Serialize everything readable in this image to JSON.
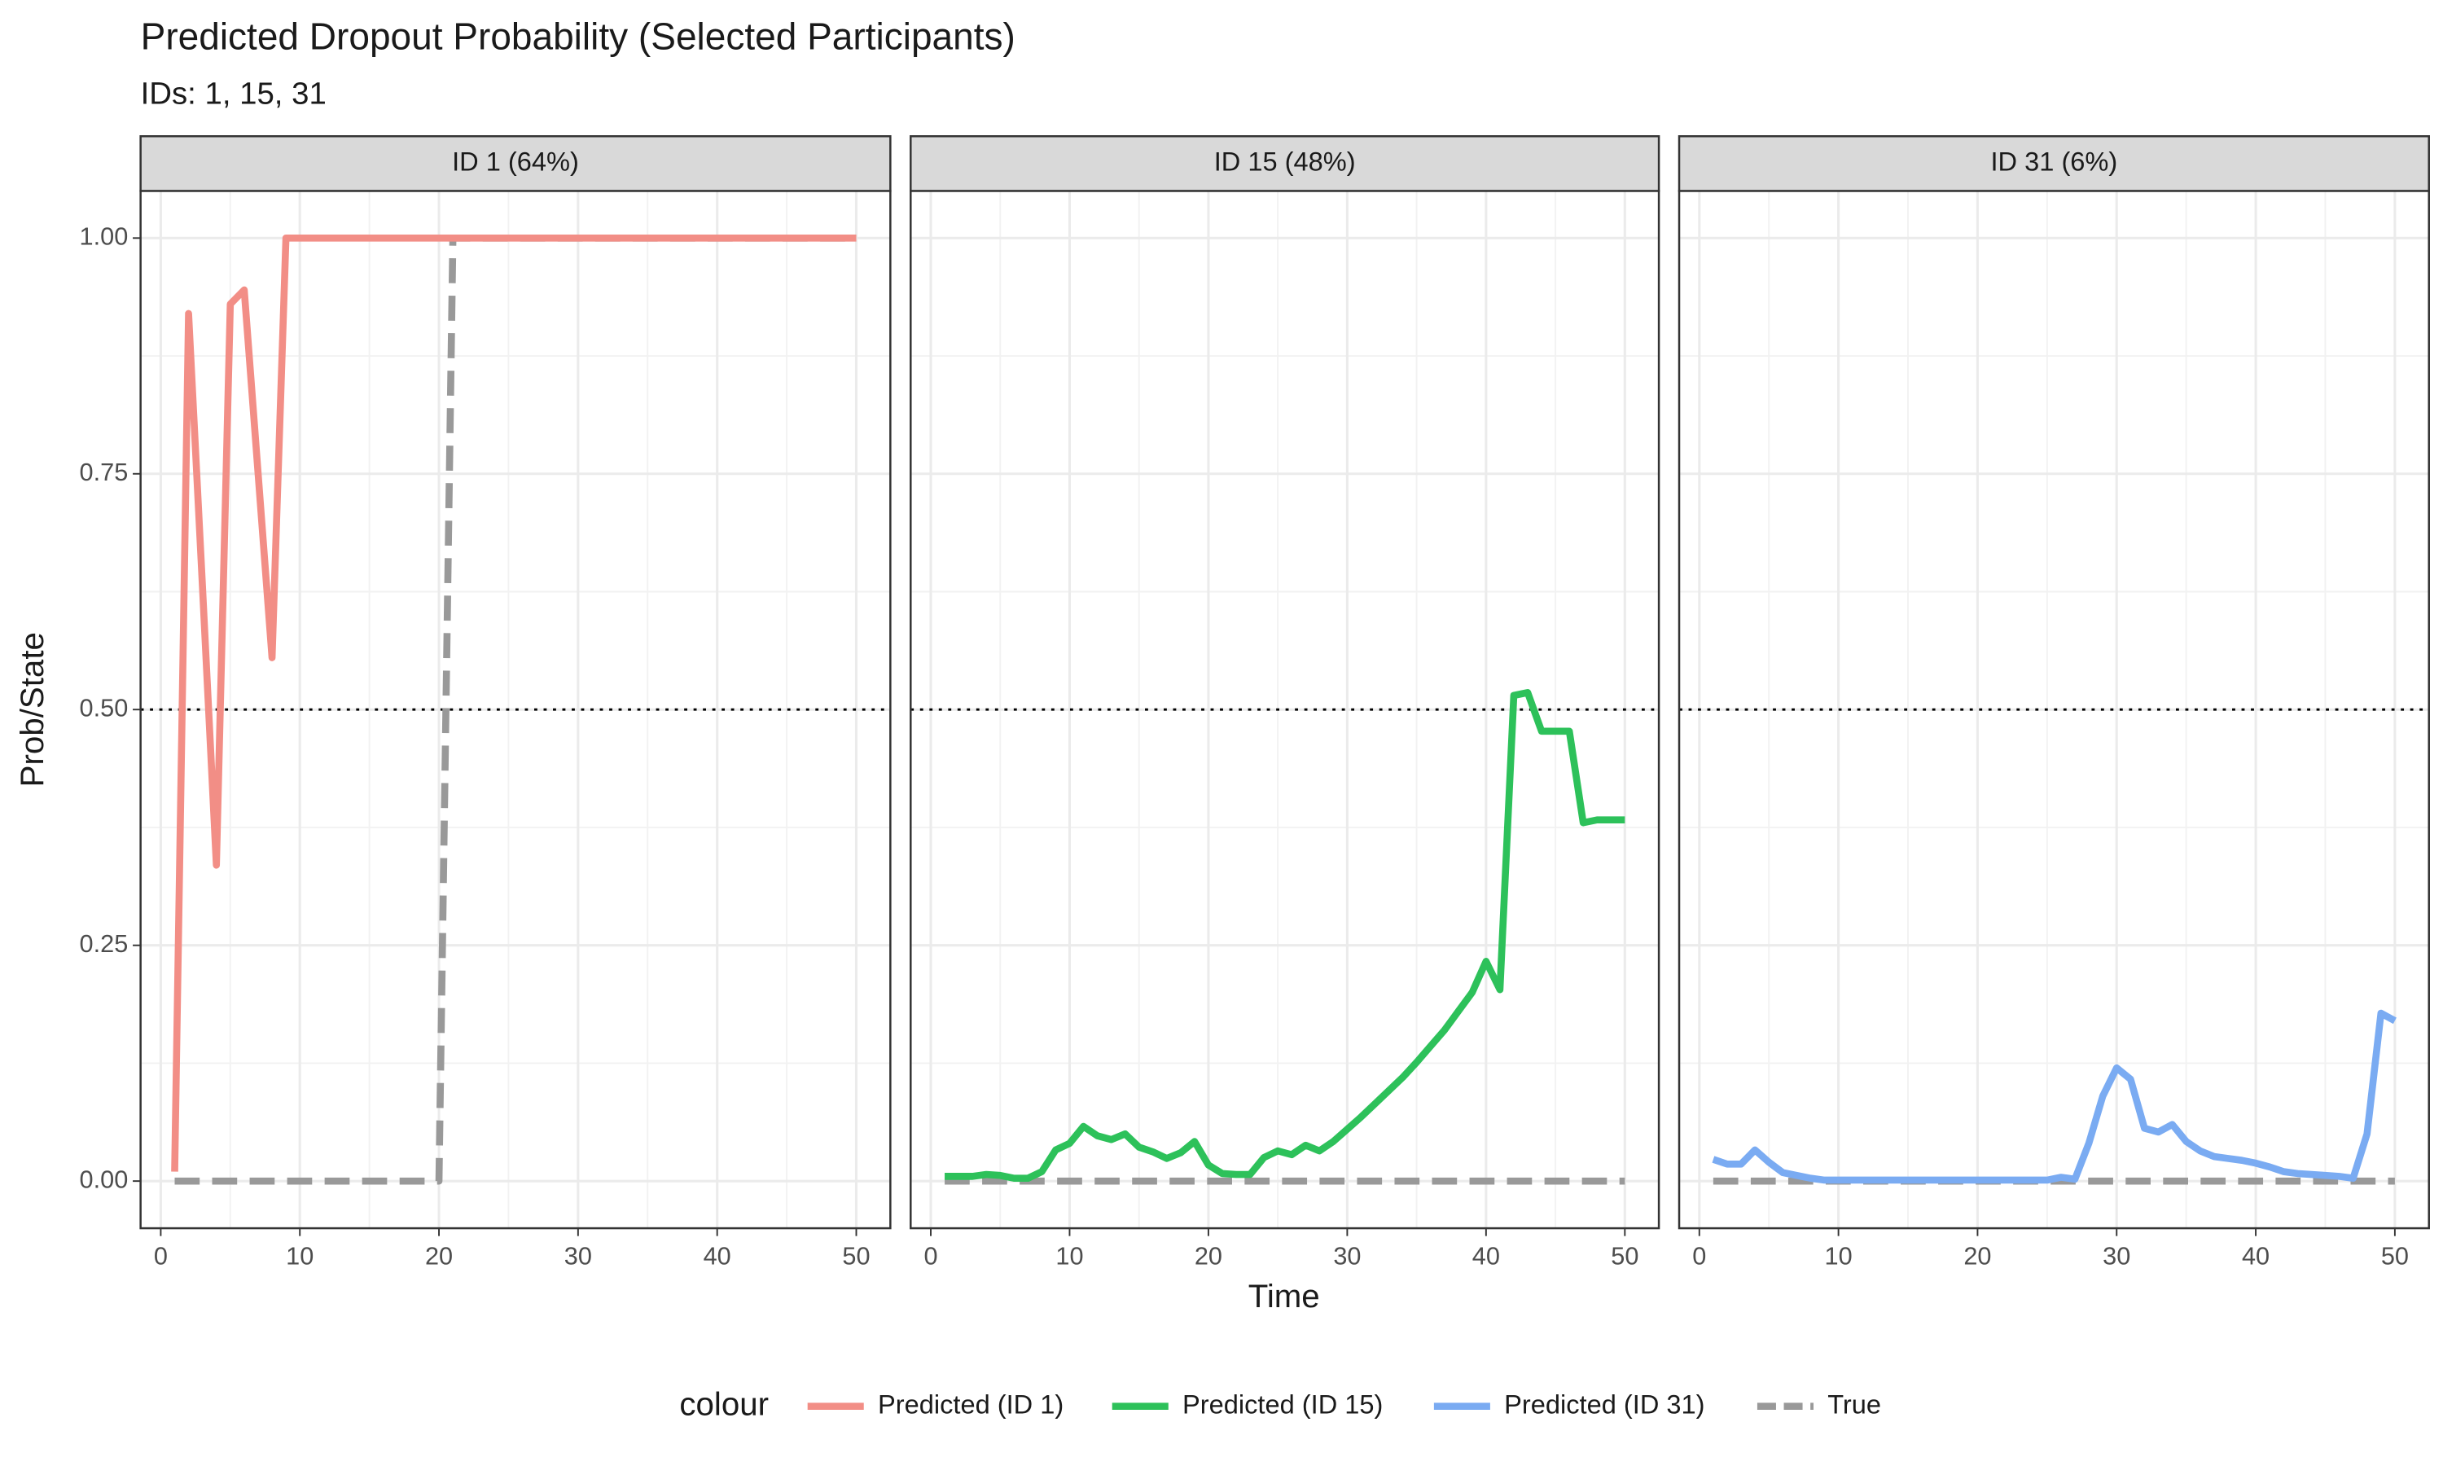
{
  "chart_data": {
    "type": "line",
    "title": "Predicted Dropout Probability (Selected Participants)",
    "subtitle": "IDs: 1, 15, 31",
    "x_label": "Time",
    "y_label": "Prob/State",
    "legend_title": "colour",
    "x": [
      1,
      2,
      3,
      4,
      5,
      6,
      7,
      8,
      9,
      10,
      11,
      12,
      13,
      14,
      15,
      16,
      17,
      18,
      19,
      20,
      21,
      22,
      23,
      24,
      25,
      26,
      27,
      28,
      29,
      30,
      31,
      32,
      33,
      34,
      35,
      36,
      37,
      38,
      39,
      40,
      41,
      42,
      43,
      44,
      45,
      46,
      47,
      48,
      49,
      50
    ],
    "xlim": [
      -1.45,
      52.45
    ],
    "xticks": [
      0,
      10,
      20,
      30,
      40,
      50
    ],
    "ylim": [
      -0.05,
      1.05
    ],
    "yticks": [
      {
        "value": 0,
        "label": "0.00"
      },
      {
        "value": 0.25,
        "label": "0.25"
      },
      {
        "value": 0.5,
        "label": "0.50"
      },
      {
        "value": 0.75,
        "label": "0.75"
      },
      {
        "value": 1,
        "label": "1.00"
      }
    ],
    "hline": 0.5,
    "grid": true,
    "panels": [
      {
        "title": "ID 1 (64%)",
        "series": [
          {
            "name": "Predicted (ID 1)",
            "color": "#F28E86",
            "dashed": false,
            "values": [
              0.01,
              0.92,
              0.63,
              0.335,
              0.93,
              0.945,
              0.75,
              0.555,
              1,
              1,
              1,
              1,
              1,
              1,
              1,
              1,
              1,
              1,
              1,
              1,
              1,
              1,
              1,
              1,
              1,
              1,
              1,
              1,
              1,
              1,
              1,
              1,
              1,
              1,
              1,
              1,
              1,
              1,
              1,
              1,
              1,
              1,
              1,
              1,
              1,
              1,
              1,
              1,
              1,
              1
            ]
          },
          {
            "name": "True",
            "color": "#999999",
            "dashed": true,
            "values": [
              0,
              0,
              0,
              0,
              0,
              0,
              0,
              0,
              0,
              0,
              0,
              0,
              0,
              0,
              0,
              0,
              0,
              0,
              0,
              0,
              1,
              1,
              1,
              1,
              1,
              1,
              1,
              1,
              1,
              1,
              1,
              1,
              1,
              1,
              1,
              1,
              1,
              1,
              1,
              1,
              1,
              1,
              1,
              1,
              1,
              1,
              1,
              1,
              1,
              1
            ]
          }
        ]
      },
      {
        "title": "ID 15 (48%)",
        "series": [
          {
            "name": "Predicted (ID 15)",
            "color": "#2DC15A",
            "dashed": false,
            "values": [
              0.005,
              0.005,
              0.005,
              0.007,
              0.006,
              0.003,
              0.003,
              0.01,
              0.033,
              0.04,
              0.058,
              0.048,
              0.044,
              0.05,
              0.036,
              0.031,
              0.024,
              0.03,
              0.042,
              0.017,
              0.008,
              0.007,
              0.007,
              0.025,
              0.032,
              0.028,
              0.038,
              0.032,
              0.042,
              0.055,
              0.068,
              0.082,
              0.096,
              0.11,
              0.126,
              0.143,
              0.16,
              0.18,
              0.2,
              0.233,
              0.203,
              0.515,
              0.518,
              0.477,
              0.477,
              0.477,
              0.38,
              0.383,
              0.383,
              0.383
            ]
          },
          {
            "name": "True",
            "color": "#999999",
            "dashed": true,
            "values": [
              0,
              0,
              0,
              0,
              0,
              0,
              0,
              0,
              0,
              0,
              0,
              0,
              0,
              0,
              0,
              0,
              0,
              0,
              0,
              0,
              0,
              0,
              0,
              0,
              0,
              0,
              0,
              0,
              0,
              0,
              0,
              0,
              0,
              0,
              0,
              0,
              0,
              0,
              0,
              0,
              0,
              0,
              0,
              0,
              0,
              0,
              0,
              0,
              0,
              0
            ]
          }
        ]
      },
      {
        "title": "ID 31 (6%)",
        "series": [
          {
            "name": "Predicted (ID 31)",
            "color": "#7AABF2",
            "dashed": false,
            "values": [
              0.023,
              0.018,
              0.018,
              0.033,
              0.02,
              0.009,
              0.006,
              0.003,
              0.001,
              0.001,
              0.001,
              0.001,
              0.001,
              0.001,
              0.001,
              0.001,
              0.001,
              0.001,
              0.001,
              0.001,
              0.001,
              0.001,
              0.001,
              0.001,
              0.001,
              0.004,
              0.002,
              0.04,
              0.09,
              0.12,
              0.108,
              0.056,
              0.052,
              0.06,
              0.042,
              0.032,
              0.026,
              0.024,
              0.022,
              0.019,
              0.015,
              0.01,
              0.008,
              0.007,
              0.006,
              0.005,
              0.003,
              0.05,
              0.178,
              0.17
            ]
          },
          {
            "name": "True",
            "color": "#999999",
            "dashed": true,
            "values": [
              0,
              0,
              0,
              0,
              0,
              0,
              0,
              0,
              0,
              0,
              0,
              0,
              0,
              0,
              0,
              0,
              0,
              0,
              0,
              0,
              0,
              0,
              0,
              0,
              0,
              0,
              0,
              0,
              0,
              0,
              0,
              0,
              0,
              0,
              0,
              0,
              0,
              0,
              0,
              0,
              0,
              0,
              0,
              0,
              0,
              0,
              0,
              0,
              0,
              0
            ]
          }
        ]
      }
    ]
  }
}
